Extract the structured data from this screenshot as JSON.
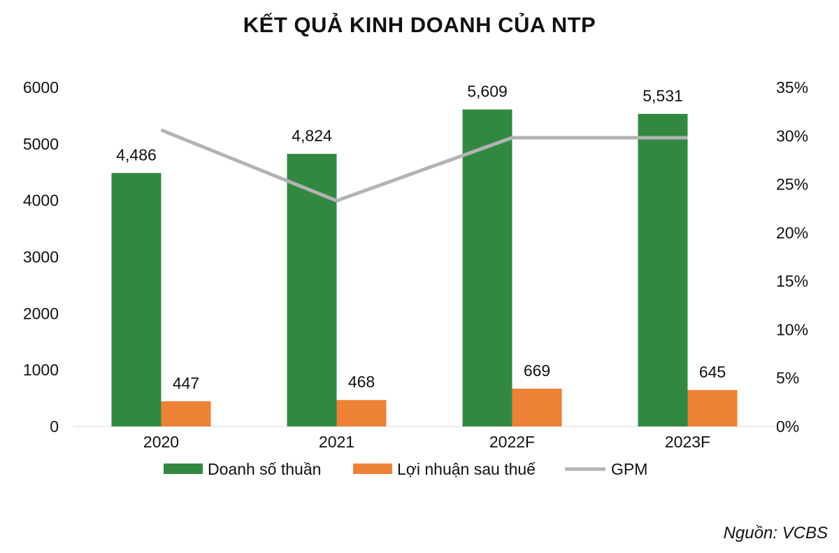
{
  "title": "KẾT QUẢ KINH DOANH CỦA NTP",
  "source": "Nguồn: VCBS",
  "colors": {
    "revenue": "#338841",
    "profit": "#ed8237",
    "gpm": "#b3b3b3"
  },
  "chart_data": {
    "type": "bar",
    "title": "KẾT QUẢ KINH DOANH CỦA NTP",
    "categories": [
      "2020",
      "2021",
      "2022F",
      "2023F"
    ],
    "series": [
      {
        "name": "Doanh số thuần",
        "type": "bar",
        "axis": "left",
        "values": [
          4486,
          4824,
          5609,
          5531
        ],
        "labels": [
          "4,486",
          "4,824",
          "5,609",
          "5,531"
        ]
      },
      {
        "name": "Lợi nhuận sau thuế",
        "type": "bar",
        "axis": "left",
        "values": [
          447,
          468,
          669,
          645
        ],
        "labels": [
          "447",
          "468",
          "669",
          "645"
        ]
      },
      {
        "name": "GPM",
        "type": "line",
        "axis": "right",
        "values": [
          30.6,
          23.3,
          29.8,
          29.8
        ]
      }
    ],
    "ylim": [
      0,
      6000
    ],
    "yticks": [
      "0",
      "1000",
      "2000",
      "3000",
      "4000",
      "5000",
      "6000"
    ],
    "y2lim": [
      0,
      35
    ],
    "y2ticks": [
      "0%",
      "5%",
      "10%",
      "15%",
      "20%",
      "25%",
      "30%",
      "35%"
    ],
    "grid": false,
    "legend": "bottom"
  }
}
